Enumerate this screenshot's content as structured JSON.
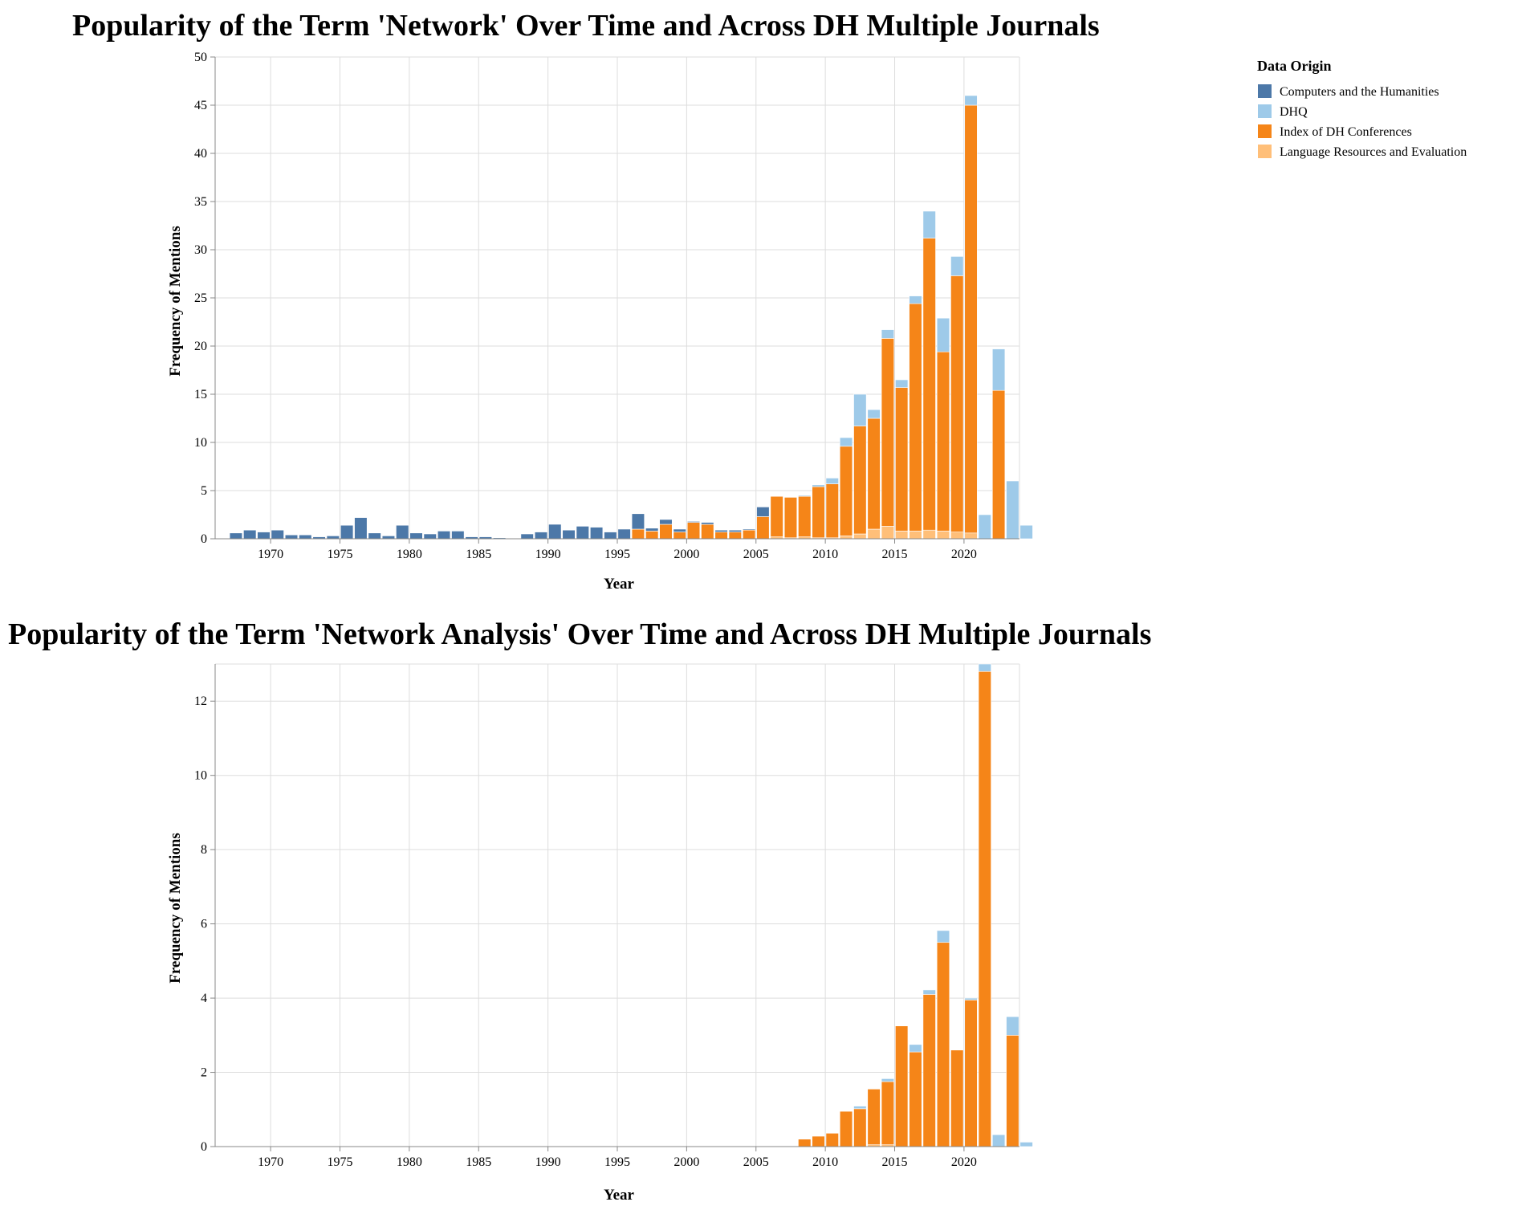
{
  "colors": {
    "Computers and the Humanities": "#4c78a8",
    "DHQ": "#9ecae9",
    "Index of DH Conferences": "#f58518",
    "Language Resources and Evaluation": "#ffbf79"
  },
  "legend": {
    "title": "Data Origin",
    "items": [
      "Computers and the Humanities",
      "DHQ",
      "Index of DH Conferences",
      "Language Resources and Evaluation"
    ]
  },
  "chart_data": [
    {
      "type": "bar",
      "stacked": true,
      "title": "Popularity of the Term 'Network' Over Time and Across DH Multiple Journals",
      "xlabel": "Year",
      "ylabel": "Frequency of Mentions",
      "xlim": [
        1966,
        2024
      ],
      "ylim": [
        0,
        50
      ],
      "xticks": [
        1970,
        1975,
        1980,
        1985,
        1990,
        1995,
        2000,
        2005,
        2010,
        2015,
        2020
      ],
      "yticks": [
        0,
        5,
        10,
        15,
        20,
        25,
        30,
        35,
        40,
        45,
        50
      ],
      "grid": true,
      "years": [
        1967,
        1968,
        1969,
        1970,
        1971,
        1972,
        1973,
        1974,
        1975,
        1976,
        1977,
        1978,
        1979,
        1980,
        1981,
        1982,
        1983,
        1984,
        1985,
        1986,
        1987,
        1988,
        1989,
        1990,
        1991,
        1992,
        1993,
        1994,
        1995,
        1996,
        1997,
        1998,
        1999,
        2000,
        2001,
        2002,
        2003,
        2004,
        2005,
        2006,
        2007,
        2008,
        2009,
        2010,
        2011,
        2012,
        2013,
        2014,
        2015,
        2016,
        2017,
        2018,
        2019,
        2020,
        2021,
        2022,
        2023,
        2024
      ],
      "series": [
        {
          "name": "Language Resources and Evaluation",
          "values": [
            0,
            0,
            0,
            0,
            0,
            0,
            0,
            0,
            0,
            0,
            0,
            0,
            0,
            0,
            0,
            0,
            0,
            0,
            0,
            0,
            0,
            0,
            0,
            0,
            0,
            0,
            0,
            0,
            0,
            0,
            0,
            0,
            0,
            0,
            0,
            0,
            0,
            0,
            0,
            0.2,
            0.1,
            0.2,
            0.1,
            0.1,
            0.3,
            0.5,
            1.0,
            1.3,
            0.8,
            0.8,
            0.9,
            0.8,
            0.7,
            0.6,
            0,
            0,
            0,
            0
          ]
        },
        {
          "name": "Index of DH Conferences",
          "values": [
            0,
            0,
            0,
            0,
            0,
            0,
            0,
            0,
            0,
            0,
            0,
            0,
            0,
            0,
            0,
            0,
            0,
            0,
            0,
            0,
            0,
            0,
            0,
            0,
            0,
            0,
            0,
            0,
            0,
            1.0,
            0.8,
            1.5,
            0.7,
            1.7,
            1.5,
            0.7,
            0.7,
            0.9,
            2.3,
            4.2,
            4.2,
            4.2,
            5.3,
            5.6,
            9.3,
            11.2,
            11.5,
            19.5,
            14.9,
            23.6,
            30.3,
            18.6,
            26.6,
            44.4,
            0,
            15.4,
            0,
            0
          ]
        },
        {
          "name": "DHQ",
          "values": [
            0,
            0,
            0,
            0,
            0,
            0,
            0,
            0,
            0,
            0,
            0,
            0,
            0,
            0,
            0,
            0,
            0,
            0,
            0,
            0,
            0,
            0,
            0,
            0,
            0,
            0,
            0,
            0,
            0,
            0,
            0,
            0,
            0,
            0,
            0,
            0,
            0,
            0,
            0,
            0,
            0,
            0.1,
            0.2,
            0.6,
            0.9,
            3.3,
            0.9,
            0.9,
            0.8,
            0.8,
            2.8,
            3.5,
            2.0,
            1.0,
            2.5,
            4.3,
            6.0,
            1.4
          ]
        },
        {
          "name": "Computers and the Humanities",
          "values": [
            0.6,
            0.9,
            0.7,
            0.9,
            0.4,
            0.4,
            0.2,
            0.3,
            1.4,
            2.2,
            0.6,
            0.3,
            1.4,
            0.6,
            0.5,
            0.8,
            0.8,
            0.2,
            0.2,
            0.1,
            0,
            0.5,
            0.7,
            1.5,
            0.9,
            1.3,
            1.2,
            0.7,
            1.0,
            1.6,
            0.3,
            0.5,
            0.3,
            0.1,
            0.2,
            0.2,
            0.2,
            0.1,
            1.0,
            0,
            0,
            0,
            0,
            0,
            0,
            0,
            0,
            0,
            0,
            0,
            0,
            0,
            0,
            0,
            0,
            0,
            0,
            0
          ]
        }
      ]
    },
    {
      "type": "bar",
      "stacked": true,
      "title": "Popularity of the Term 'Network Analysis' Over Time and Across DH Multiple Journals",
      "xlabel": "Year",
      "ylabel": "Frequency of Mentions",
      "xlim": [
        1966,
        2024
      ],
      "ylim": [
        0,
        13
      ],
      "xticks": [
        1970,
        1975,
        1980,
        1985,
        1990,
        1995,
        2000,
        2005,
        2010,
        2015,
        2020
      ],
      "yticks": [
        0,
        2,
        4,
        6,
        8,
        10,
        12
      ],
      "grid": true,
      "years": [
        2008,
        2009,
        2010,
        2011,
        2012,
        2013,
        2014,
        2015,
        2016,
        2017,
        2018,
        2019,
        2020,
        2021,
        2022,
        2023,
        2024
      ],
      "series": [
        {
          "name": "Language Resources and Evaluation",
          "values": [
            0,
            0,
            0,
            0,
            0,
            0.05,
            0.05,
            0,
            0,
            0,
            0,
            0,
            0,
            0,
            0,
            0,
            0
          ]
        },
        {
          "name": "Index of DH Conferences",
          "values": [
            0.2,
            0.28,
            0.36,
            0.95,
            1.02,
            1.5,
            1.7,
            3.25,
            2.55,
            4.1,
            5.5,
            2.6,
            3.95,
            12.8,
            0,
            3.0,
            0
          ]
        },
        {
          "name": "DHQ",
          "values": [
            0,
            0,
            0,
            0,
            0.07,
            0,
            0.08,
            0,
            0.2,
            0.12,
            0.32,
            0,
            0.05,
            0.3,
            0.32,
            0.5,
            0.12
          ]
        },
        {
          "name": "Computers and the Humanities",
          "values": [
            0,
            0,
            0,
            0,
            0,
            0,
            0,
            0,
            0,
            0,
            0,
            0,
            0,
            0,
            0,
            0,
            0
          ]
        }
      ]
    }
  ]
}
